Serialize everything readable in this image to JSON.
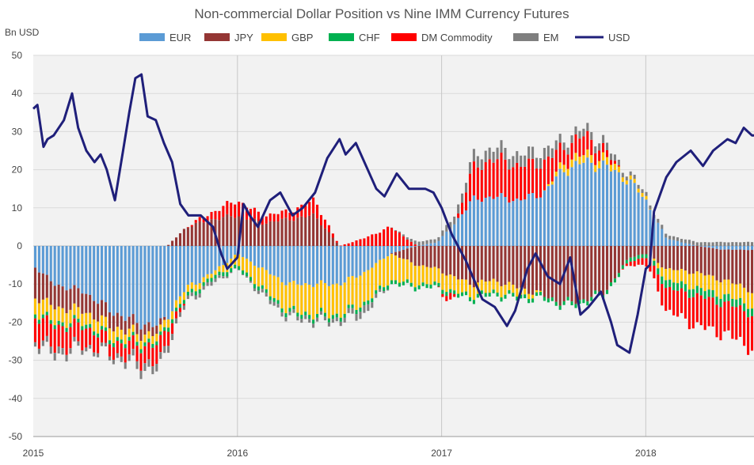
{
  "chart_data": {
    "type": "bar",
    "title": "Non-commercial Dollar Position vs Nine IMM Currency Futures",
    "ylabel": "Bn USD",
    "xlabel": "",
    "ylim": [
      -50,
      50
    ],
    "xlim": [
      2015.0,
      2018.53
    ],
    "yticks": [
      50,
      40,
      30,
      20,
      10,
      0,
      -10,
      -20,
      -30,
      -40,
      -50
    ],
    "xticks": [
      {
        "value": 2015,
        "label": "2015"
      },
      {
        "value": 2016,
        "label": "2016"
      },
      {
        "value": 2017,
        "label": "2017"
      },
      {
        "value": 2018,
        "label": "2018"
      }
    ],
    "grid": true,
    "legend_position": "top",
    "legend": [
      {
        "name": "EUR",
        "color": "#5b9bd5",
        "kind": "bar"
      },
      {
        "name": "JPY",
        "color": "#943634",
        "kind": "bar"
      },
      {
        "name": "GBP",
        "color": "#ffc000",
        "kind": "bar"
      },
      {
        "name": "CHF",
        "color": "#00b050",
        "kind": "bar"
      },
      {
        "name": "DM Commodity",
        "color": "#ff0000",
        "kind": "bar"
      },
      {
        "name": "EM",
        "color": "#7f7f7f",
        "kind": "bar"
      },
      {
        "name": "USD",
        "color": "#1f1f7a",
        "kind": "line"
      }
    ],
    "stack_order": [
      "EUR",
      "JPY",
      "GBP",
      "CHF",
      "DM Commodity",
      "EM"
    ],
    "series": [
      {
        "name": "EUR",
        "color": "#5b9bd5",
        "points": [
          [
            2015.0,
            -5
          ],
          [
            2015.1,
            -10
          ],
          [
            2015.25,
            -12
          ],
          [
            2015.38,
            -17
          ],
          [
            2015.5,
            -20
          ],
          [
            2015.62,
            -21
          ],
          [
            2015.75,
            -11
          ],
          [
            2015.88,
            -7
          ],
          [
            2016.0,
            -2
          ],
          [
            2016.12,
            -6
          ],
          [
            2016.25,
            -10
          ],
          [
            2016.38,
            -10
          ],
          [
            2016.5,
            -10
          ],
          [
            2016.62,
            -7
          ],
          [
            2016.75,
            -2
          ],
          [
            2016.88,
            0
          ],
          [
            2016.98,
            1
          ],
          [
            2017.05,
            5
          ],
          [
            2017.15,
            12
          ],
          [
            2017.25,
            13
          ],
          [
            2017.38,
            12
          ],
          [
            2017.5,
            14
          ],
          [
            2017.6,
            20
          ],
          [
            2017.7,
            22
          ],
          [
            2017.8,
            21
          ],
          [
            2017.92,
            17
          ],
          [
            2018.0,
            12
          ],
          [
            2018.1,
            2
          ],
          [
            2018.25,
            0
          ],
          [
            2018.38,
            -1
          ],
          [
            2018.5,
            -1
          ],
          [
            2018.53,
            -1
          ]
        ]
      },
      {
        "name": "JPY",
        "color": "#943634",
        "points": [
          [
            2015.0,
            -8
          ],
          [
            2015.1,
            -6
          ],
          [
            2015.25,
            -5
          ],
          [
            2015.38,
            -4
          ],
          [
            2015.5,
            -3
          ],
          [
            2015.62,
            -2
          ],
          [
            2015.75,
            5
          ],
          [
            2015.88,
            7
          ],
          [
            2016.0,
            8
          ],
          [
            2016.12,
            6
          ],
          [
            2016.25,
            7
          ],
          [
            2016.38,
            8
          ],
          [
            2016.5,
            0
          ],
          [
            2016.62,
            0
          ],
          [
            2016.75,
            0
          ],
          [
            2016.88,
            -5
          ],
          [
            2016.98,
            -6
          ],
          [
            2017.05,
            -8
          ],
          [
            2017.15,
            -10
          ],
          [
            2017.25,
            -9
          ],
          [
            2017.38,
            -11
          ],
          [
            2017.5,
            -13
          ],
          [
            2017.6,
            -15
          ],
          [
            2017.7,
            -14
          ],
          [
            2017.8,
            -12
          ],
          [
            2017.92,
            -3
          ],
          [
            2018.0,
            -2
          ],
          [
            2018.1,
            -6
          ],
          [
            2018.25,
            -7
          ],
          [
            2018.38,
            -8
          ],
          [
            2018.5,
            -10
          ],
          [
            2018.53,
            -12
          ]
        ]
      },
      {
        "name": "GBP",
        "color": "#ffc000",
        "points": [
          [
            2015.0,
            -4
          ],
          [
            2015.1,
            -4
          ],
          [
            2015.25,
            -3
          ],
          [
            2015.38,
            -3
          ],
          [
            2015.5,
            -2
          ],
          [
            2015.62,
            -2
          ],
          [
            2015.75,
            -2
          ],
          [
            2015.88,
            -1
          ],
          [
            2016.0,
            -3
          ],
          [
            2016.12,
            -5
          ],
          [
            2016.25,
            -7
          ],
          [
            2016.38,
            -8
          ],
          [
            2016.5,
            -8
          ],
          [
            2016.62,
            -8
          ],
          [
            2016.75,
            -7
          ],
          [
            2016.88,
            -5
          ],
          [
            2016.98,
            -4
          ],
          [
            2017.05,
            -4
          ],
          [
            2017.15,
            -3
          ],
          [
            2017.25,
            -3
          ],
          [
            2017.38,
            -2
          ],
          [
            2017.5,
            0
          ],
          [
            2017.6,
            2
          ],
          [
            2017.7,
            2
          ],
          [
            2017.8,
            2
          ],
          [
            2017.92,
            1
          ],
          [
            2018.0,
            1
          ],
          [
            2018.1,
            -3
          ],
          [
            2018.25,
            -4
          ],
          [
            2018.38,
            -4
          ],
          [
            2018.5,
            -4
          ],
          [
            2018.53,
            -4
          ]
        ]
      },
      {
        "name": "CHF",
        "color": "#00b050",
        "points": [
          [
            2015.0,
            -1
          ],
          [
            2015.1,
            -1
          ],
          [
            2015.25,
            -1
          ],
          [
            2015.38,
            -1
          ],
          [
            2015.5,
            -1
          ],
          [
            2015.62,
            -1
          ],
          [
            2015.75,
            -1
          ],
          [
            2015.88,
            -1
          ],
          [
            2016.0,
            -1
          ],
          [
            2016.12,
            -1
          ],
          [
            2016.25,
            -1
          ],
          [
            2016.38,
            -1
          ],
          [
            2016.5,
            -1
          ],
          [
            2016.62,
            -1
          ],
          [
            2016.75,
            -1
          ],
          [
            2016.88,
            -1
          ],
          [
            2016.98,
            -1
          ],
          [
            2017.05,
            -1
          ],
          [
            2017.15,
            -1
          ],
          [
            2017.25,
            -1
          ],
          [
            2017.38,
            -1
          ],
          [
            2017.5,
            -1
          ],
          [
            2017.6,
            -1
          ],
          [
            2017.7,
            -1
          ],
          [
            2017.8,
            -1
          ],
          [
            2017.92,
            -1
          ],
          [
            2018.0,
            -1
          ],
          [
            2018.1,
            -2
          ],
          [
            2018.25,
            -2
          ],
          [
            2018.38,
            -2
          ],
          [
            2018.5,
            -2
          ],
          [
            2018.53,
            -2
          ]
        ]
      },
      {
        "name": "DM Commodity",
        "color": "#ff0000",
        "points": [
          [
            2015.0,
            -6
          ],
          [
            2015.1,
            -6
          ],
          [
            2015.25,
            -5
          ],
          [
            2015.38,
            -3
          ],
          [
            2015.5,
            -4
          ],
          [
            2015.62,
            -5
          ],
          [
            2015.75,
            0
          ],
          [
            2015.88,
            2
          ],
          [
            2016.0,
            4
          ],
          [
            2016.12,
            2
          ],
          [
            2016.25,
            2
          ],
          [
            2016.38,
            4
          ],
          [
            2016.5,
            0
          ],
          [
            2016.62,
            2
          ],
          [
            2016.75,
            5
          ],
          [
            2016.88,
            0
          ],
          [
            2016.98,
            0
          ],
          [
            2017.05,
            -2
          ],
          [
            2017.15,
            8
          ],
          [
            2017.25,
            10
          ],
          [
            2017.38,
            9
          ],
          [
            2017.5,
            8
          ],
          [
            2017.6,
            4
          ],
          [
            2017.7,
            5
          ],
          [
            2017.8,
            2
          ],
          [
            2017.92,
            -1
          ],
          [
            2018.0,
            -2
          ],
          [
            2018.1,
            -6
          ],
          [
            2018.25,
            -8
          ],
          [
            2018.38,
            -8
          ],
          [
            2018.5,
            -9
          ],
          [
            2018.53,
            -9
          ]
        ]
      },
      {
        "name": "EM",
        "color": "#7f7f7f",
        "points": [
          [
            2015.0,
            -1
          ],
          [
            2015.1,
            -2
          ],
          [
            2015.25,
            -1
          ],
          [
            2015.38,
            -1
          ],
          [
            2015.5,
            -2
          ],
          [
            2015.62,
            -2
          ],
          [
            2015.75,
            -1
          ],
          [
            2015.88,
            -1
          ],
          [
            2016.0,
            0
          ],
          [
            2016.12,
            -1
          ],
          [
            2016.25,
            -1
          ],
          [
            2016.38,
            -1
          ],
          [
            2016.5,
            -1
          ],
          [
            2016.62,
            -2
          ],
          [
            2016.75,
            0
          ],
          [
            2016.88,
            1
          ],
          [
            2016.98,
            1
          ],
          [
            2017.05,
            2
          ],
          [
            2017.15,
            3
          ],
          [
            2017.25,
            3
          ],
          [
            2017.38,
            3
          ],
          [
            2017.5,
            3
          ],
          [
            2017.6,
            2
          ],
          [
            2017.7,
            2
          ],
          [
            2017.8,
            2
          ],
          [
            2017.92,
            1
          ],
          [
            2018.0,
            1
          ],
          [
            2018.1,
            1
          ],
          [
            2018.25,
            1
          ],
          [
            2018.38,
            1
          ],
          [
            2018.5,
            1
          ],
          [
            2018.53,
            1
          ]
        ]
      },
      {
        "name": "USD",
        "color": "#1f1f7a",
        "kind": "line",
        "points": [
          [
            2015.0,
            36
          ],
          [
            2015.02,
            37
          ],
          [
            2015.05,
            26
          ],
          [
            2015.07,
            28
          ],
          [
            2015.1,
            29
          ],
          [
            2015.15,
            33
          ],
          [
            2015.19,
            40
          ],
          [
            2015.22,
            31
          ],
          [
            2015.26,
            25
          ],
          [
            2015.3,
            22
          ],
          [
            2015.33,
            24
          ],
          [
            2015.36,
            20
          ],
          [
            2015.4,
            12
          ],
          [
            2015.44,
            25
          ],
          [
            2015.47,
            35
          ],
          [
            2015.5,
            44
          ],
          [
            2015.53,
            45
          ],
          [
            2015.56,
            34
          ],
          [
            2015.6,
            33
          ],
          [
            2015.64,
            27
          ],
          [
            2015.68,
            22
          ],
          [
            2015.72,
            11
          ],
          [
            2015.76,
            8
          ],
          [
            2015.82,
            8
          ],
          [
            2015.88,
            5
          ],
          [
            2015.92,
            -2
          ],
          [
            2015.95,
            -6
          ],
          [
            2016.0,
            -3
          ],
          [
            2016.03,
            11
          ],
          [
            2016.06,
            8
          ],
          [
            2016.1,
            5
          ],
          [
            2016.16,
            12
          ],
          [
            2016.21,
            14
          ],
          [
            2016.27,
            8
          ],
          [
            2016.32,
            10
          ],
          [
            2016.38,
            14
          ],
          [
            2016.44,
            23
          ],
          [
            2016.5,
            28
          ],
          [
            2016.53,
            24
          ],
          [
            2016.58,
            27
          ],
          [
            2016.63,
            21
          ],
          [
            2016.68,
            15
          ],
          [
            2016.72,
            13
          ],
          [
            2016.78,
            19
          ],
          [
            2016.84,
            15
          ],
          [
            2016.92,
            15
          ],
          [
            2016.96,
            14
          ],
          [
            2017.0,
            10
          ],
          [
            2017.05,
            3
          ],
          [
            2017.12,
            -4
          ],
          [
            2017.2,
            -14
          ],
          [
            2017.26,
            -16
          ],
          [
            2017.32,
            -21
          ],
          [
            2017.36,
            -17
          ],
          [
            2017.42,
            -6
          ],
          [
            2017.46,
            -2
          ],
          [
            2017.52,
            -8
          ],
          [
            2017.58,
            -10
          ],
          [
            2017.63,
            -3
          ],
          [
            2017.68,
            -18
          ],
          [
            2017.72,
            -16
          ],
          [
            2017.78,
            -12
          ],
          [
            2017.83,
            -20
          ],
          [
            2017.86,
            -26
          ],
          [
            2017.92,
            -28
          ],
          [
            2017.96,
            -18
          ],
          [
            2018.0,
            -6
          ],
          [
            2018.02,
            -5
          ],
          [
            2018.04,
            9
          ],
          [
            2018.1,
            18
          ],
          [
            2018.15,
            22
          ],
          [
            2018.22,
            25
          ],
          [
            2018.28,
            21
          ],
          [
            2018.33,
            25
          ],
          [
            2018.4,
            28
          ],
          [
            2018.44,
            27
          ],
          [
            2018.48,
            31
          ],
          [
            2018.52,
            29
          ],
          [
            2018.53,
            29
          ]
        ]
      }
    ]
  }
}
